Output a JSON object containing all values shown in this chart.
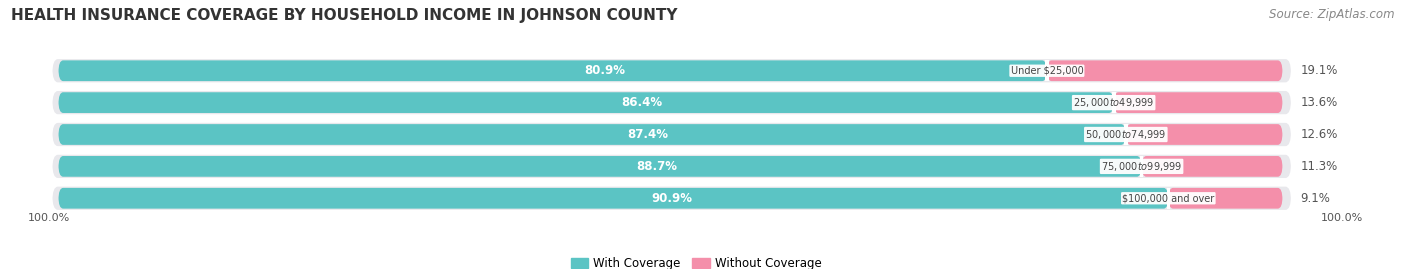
{
  "title": "HEALTH INSURANCE COVERAGE BY HOUSEHOLD INCOME IN JOHNSON COUNTY",
  "source": "Source: ZipAtlas.com",
  "categories": [
    "Under $25,000",
    "$25,000 to $49,999",
    "$50,000 to $74,999",
    "$75,000 to $99,999",
    "$100,000 and over"
  ],
  "with_coverage": [
    80.9,
    86.4,
    87.4,
    88.7,
    90.9
  ],
  "without_coverage": [
    19.1,
    13.6,
    12.6,
    11.3,
    9.1
  ],
  "color_with": "#5BC4C4",
  "color_without": "#F48FAA",
  "color_bg_bar": "#e8e8ec",
  "legend_with": "With Coverage",
  "legend_without": "Without Coverage",
  "bottom_label": "100.0%",
  "title_fontsize": 11,
  "source_fontsize": 8.5,
  "label_fontsize": 8,
  "pct_fontsize": 8.5
}
